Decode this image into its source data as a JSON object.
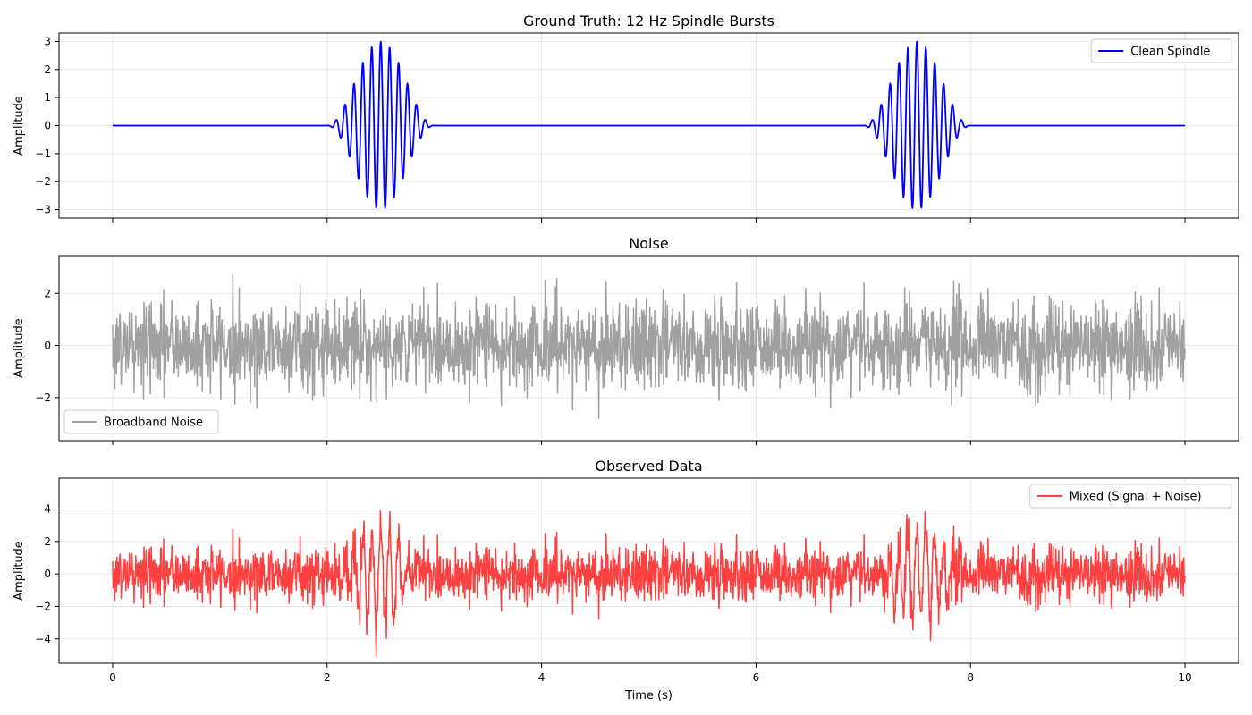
{
  "chart_data": [
    {
      "type": "line",
      "title": "Ground Truth: 12 Hz Spindle Bursts",
      "ylabel": "Amplitude",
      "xlabel": "",
      "xlim": [
        -0.5,
        10.5
      ],
      "ylim": [
        -3.3,
        3.3
      ],
      "xticks": [
        0,
        2,
        4,
        6,
        8,
        10
      ],
      "xtick_labels": [],
      "yticks": [
        -3,
        -2,
        -1,
        0,
        1,
        2,
        3
      ],
      "ytick_labels": [
        "−3",
        "−2",
        "−1",
        "0",
        "1",
        "2",
        "3"
      ],
      "grid": true,
      "legend_position": "upper right",
      "series": [
        {
          "name": "Clean Spindle",
          "color": "#0000ff",
          "kind": "spindle",
          "frequency_hz": 12,
          "amplitude": 3,
          "burst_centers_s": [
            2.5,
            7.5
          ],
          "burst_halfwidth_s": 0.5,
          "x_range": [
            0,
            10
          ]
        }
      ]
    },
    {
      "type": "line",
      "title": "Noise",
      "ylabel": "Amplitude",
      "xlabel": "",
      "xlim": [
        -0.5,
        10.5
      ],
      "ylim": [
        -3.65,
        3.45
      ],
      "xticks": [
        0,
        2,
        4,
        6,
        8,
        10
      ],
      "xtick_labels": [],
      "yticks": [
        -2,
        0,
        2
      ],
      "ytick_labels": [
        "−2",
        "0",
        "2"
      ],
      "grid": true,
      "legend_position": "lower left",
      "series": [
        {
          "name": "Broadband Noise",
          "color": "#a0a0a0",
          "kind": "noise",
          "std": 1.0,
          "x_range": [
            0,
            10
          ]
        }
      ]
    },
    {
      "type": "line",
      "title": "Observed Data",
      "ylabel": "Amplitude",
      "xlabel": "Time (s)",
      "xlim": [
        -0.5,
        10.5
      ],
      "ylim": [
        -5.5,
        5.9
      ],
      "xticks": [
        0,
        2,
        4,
        6,
        8,
        10
      ],
      "xtick_labels": [
        "0",
        "2",
        "4",
        "6",
        "8",
        "10"
      ],
      "yticks": [
        -4,
        -2,
        0,
        2,
        4
      ],
      "ytick_labels": [
        "−4",
        "−2",
        "0",
        "2",
        "4"
      ],
      "grid": true,
      "legend_position": "upper right",
      "series": [
        {
          "name": "Mixed (Signal + Noise)",
          "color": "#ff4040",
          "kind": "mixed",
          "x_range": [
            0,
            10
          ]
        }
      ]
    }
  ]
}
